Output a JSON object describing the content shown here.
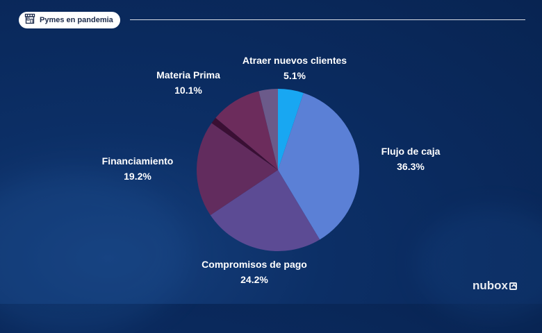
{
  "header": {
    "title": "Pymes en pandemia",
    "icon": "store-icon"
  },
  "logo": {
    "text": "nubox",
    "icon": "nubox-box-icon"
  },
  "colors": {
    "flujo": "#5b80d6",
    "compromisos": "#5c4b94",
    "financiamiento": "#622c5e",
    "sliver": "#3a0f33",
    "materia": "#6c2c5c",
    "gris": "#6b5a8a",
    "atraer": "#18a7f2"
  },
  "chart_data": {
    "type": "pie",
    "title": "",
    "slices": [
      {
        "label": "Atraer nuevos clientes",
        "value": 5.1,
        "display": "5.1%",
        "color": "#18a7f2"
      },
      {
        "label": "Flujo de caja",
        "value": 36.3,
        "display": "36.3%",
        "color": "#5b80d6"
      },
      {
        "label": "Compromisos de pago",
        "value": 24.2,
        "display": "24.2%",
        "color": "#5c4b94"
      },
      {
        "label": "Financiamiento",
        "value": 19.2,
        "display": "19.2%",
        "color": "#622c5e"
      },
      {
        "label": "",
        "value": 1.3,
        "display": "",
        "color": "#3a0f33"
      },
      {
        "label": "Materia Prima",
        "value": 10.1,
        "display": "10.1%",
        "color": "#6c2c5c"
      },
      {
        "label": "",
        "value": 3.8,
        "display": "",
        "color": "#6b5a8a"
      }
    ]
  }
}
